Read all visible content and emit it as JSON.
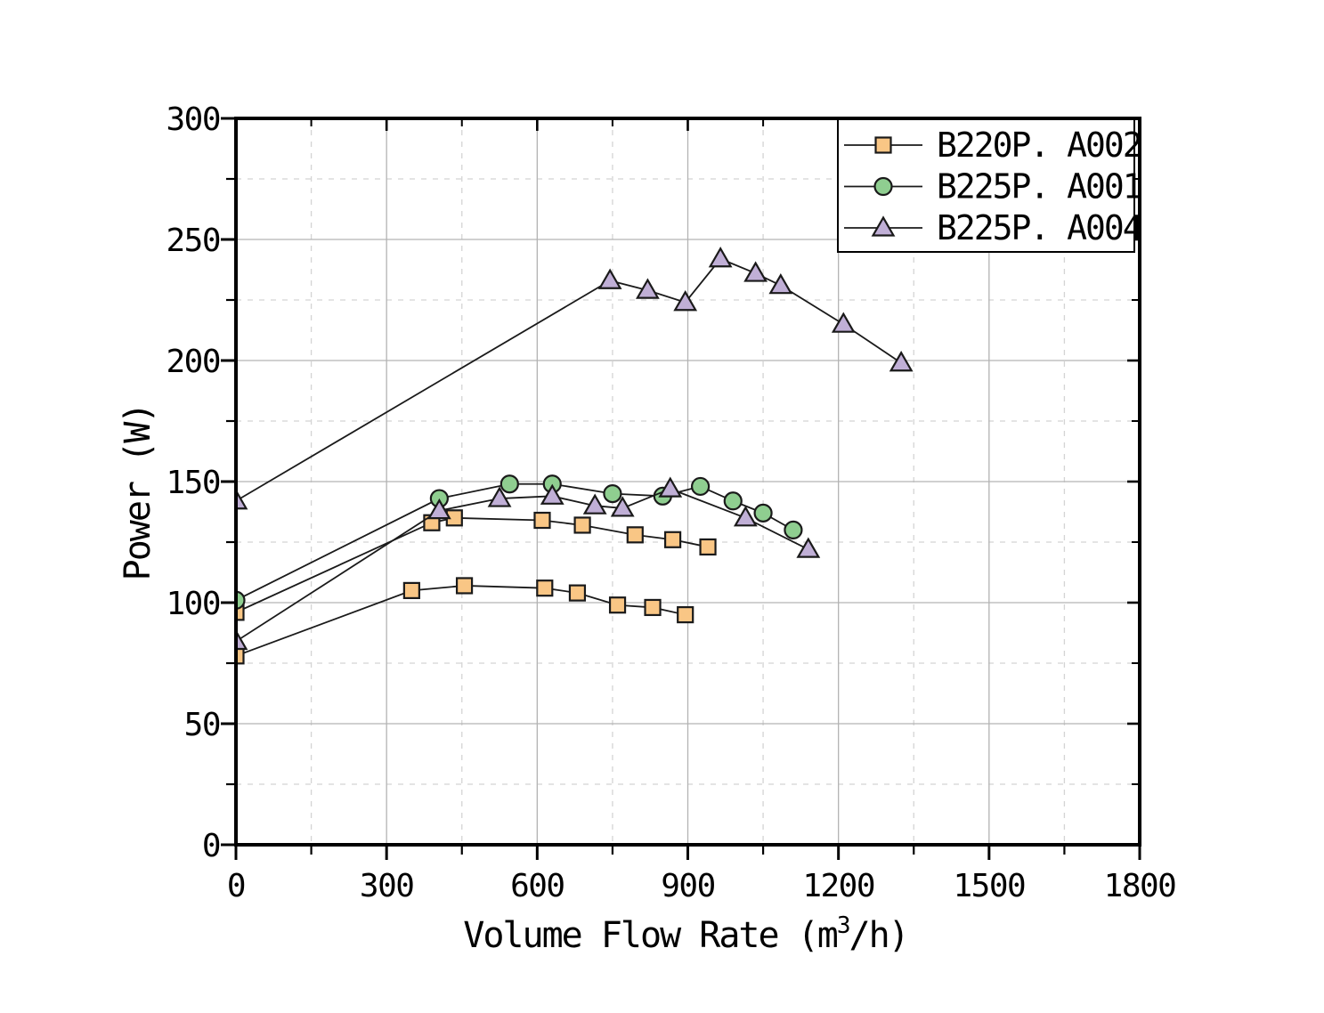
{
  "figure": {
    "background": "#ffffff",
    "frame_color": "#000000",
    "line_color": "#1a1a1a"
  },
  "chart_data": {
    "type": "line",
    "title": "",
    "xlabel": "Volume Flow Rate (m³/h)",
    "xlabel_parts": {
      "prefix": "Volume Flow Rate",
      "open": "(m",
      "sup": "3",
      "suffix": "/h)"
    },
    "ylabel": "Power (W)",
    "ylabel_parts": {
      "word": "Power",
      "unit": "(W)"
    },
    "xlim": [
      0,
      1800
    ],
    "ylim": [
      0,
      300
    ],
    "x_major_ticks": [
      0,
      300,
      600,
      900,
      1200,
      1500,
      1800
    ],
    "x_minor_ticks": [
      150,
      450,
      750,
      1050,
      1350,
      1650
    ],
    "y_major_ticks": [
      0,
      50,
      100,
      150,
      200,
      250,
      300
    ],
    "y_minor_ticks": [
      25,
      75,
      125,
      175,
      225,
      275
    ],
    "grid": {
      "major_style": "solid",
      "minor_style": "dashed",
      "major_color": "#b3b3b3",
      "minor_color": "#d4d4d4"
    },
    "legend": {
      "position": "top-right",
      "entries": [
        "B220P. A002",
        "B225P. A001",
        "B225P. A004"
      ]
    },
    "series": [
      {
        "name": "B220P. A002",
        "marker": "square",
        "fill": "#F9C685",
        "runs": [
          [
            [
              0,
              96
            ],
            [
              390,
              133
            ],
            [
              435,
              135
            ],
            [
              610,
              134
            ],
            [
              690,
              132
            ],
            [
              795,
              128
            ],
            [
              870,
              126
            ],
            [
              940,
              123
            ]
          ],
          [
            [
              0,
              78
            ],
            [
              350,
              105
            ],
            [
              455,
              107
            ],
            [
              615,
              106
            ],
            [
              680,
              104
            ],
            [
              760,
              99
            ],
            [
              830,
              98
            ],
            [
              895,
              95
            ]
          ]
        ]
      },
      {
        "name": "B225P. A001",
        "marker": "circle",
        "fill": "#8FCE90",
        "runs": [
          [
            [
              0,
              101
            ],
            [
              405,
              143
            ],
            [
              545,
              149
            ],
            [
              630,
              149
            ],
            [
              750,
              145
            ],
            [
              850,
              144
            ],
            [
              925,
              148
            ],
            [
              990,
              142
            ],
            [
              1050,
              137
            ],
            [
              1110,
              130
            ]
          ]
        ]
      },
      {
        "name": "B225P. A004",
        "marker": "triangle-up",
        "fill": "#C0AFD6",
        "runs": [
          [
            [
              0,
              142
            ],
            [
              745,
              233
            ],
            [
              820,
              229
            ],
            [
              895,
              224
            ],
            [
              965,
              242
            ],
            [
              1035,
              236
            ],
            [
              1085,
              231
            ],
            [
              1210,
              215
            ],
            [
              1325,
              199
            ]
          ],
          [
            [
              0,
              84
            ],
            [
              405,
              138
            ],
            [
              525,
              143
            ],
            [
              630,
              144
            ],
            [
              715,
              140
            ],
            [
              770,
              139
            ],
            [
              865,
              147
            ],
            [
              1015,
              135
            ],
            [
              1140,
              122
            ]
          ]
        ]
      }
    ]
  }
}
